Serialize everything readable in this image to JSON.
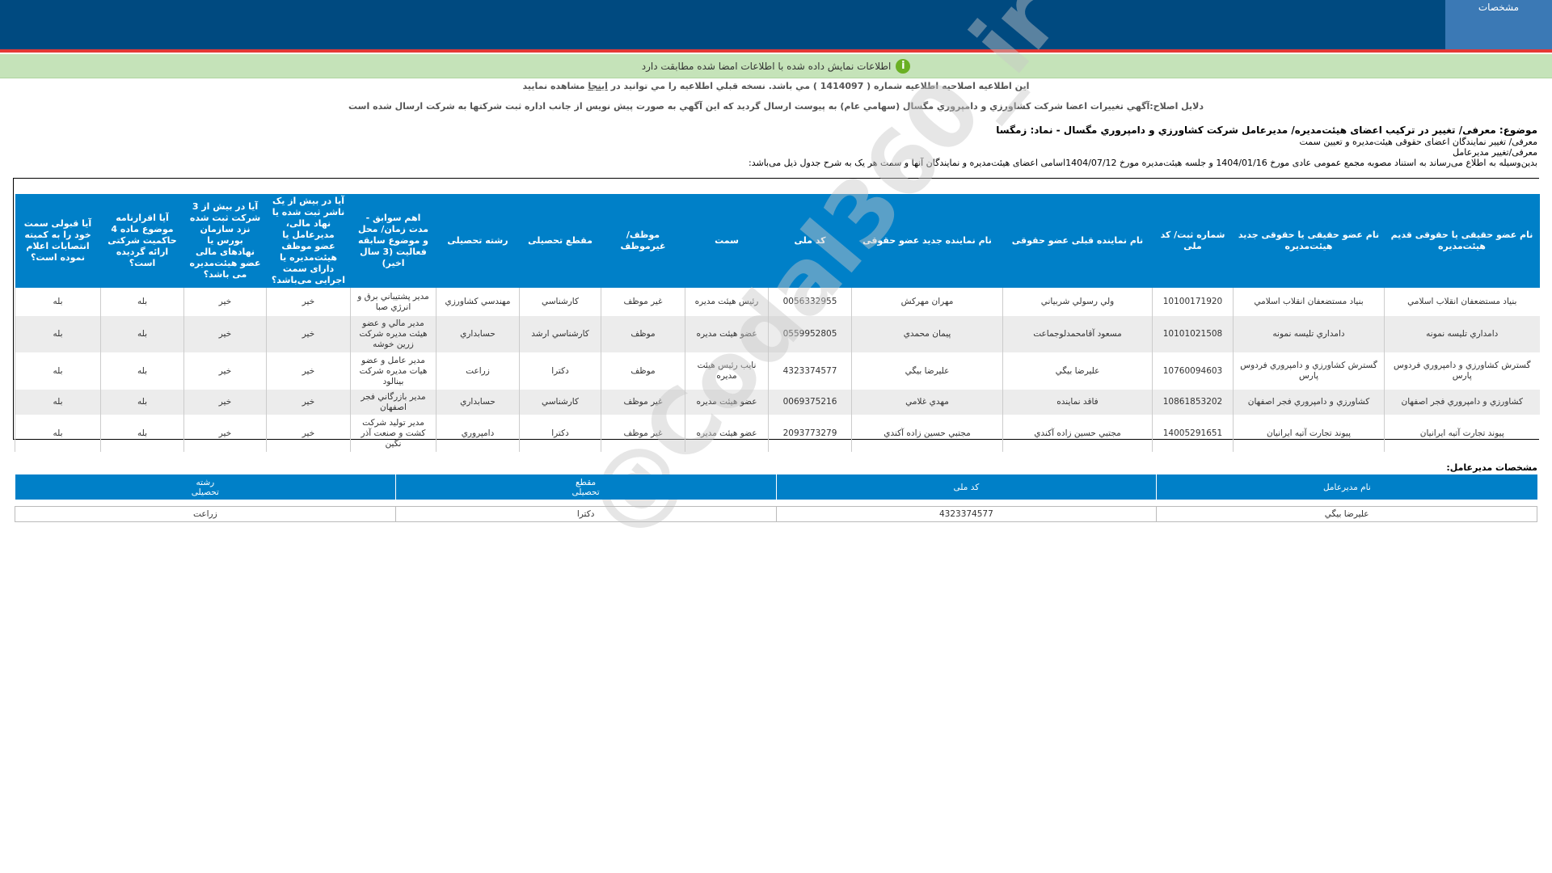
{
  "header": {
    "tab_label": "مشخصات"
  },
  "notice": {
    "text": "اطلاعات نمایش داده شده با اطلاعات امضا شده مطابقت دارد",
    "icon": "info-icon"
  },
  "correction": {
    "before": "اين اطلاعيه اصلاحيه اطلاعيه شماره ( 1414097 ) مي باشد. نسخه قبلي اطلاعيه را مي توانيد در ",
    "link": "اينجا",
    "after": " مشاهده نماييد"
  },
  "reasons": "دلایل اصلاح:آگهي تغييرات اعضا شرکت کشاورزي و دامپروري مگسال (سهامي عام) به پيوست ارسال گرديد که اين آگهي به صورت پيش نويس از جانب اداره ثبت شرکتها به شرکت ارسال شده است",
  "subject": {
    "title": "موضوع: معرفی/ تغییر در ترکیب اعضای هیئت‌مدیره/ مدیرعامل شرکت کشاورزي و دامپروري مگسال - نماد: زمگسا",
    "line1": "معرفی/ تغییر نمایندگان اعضای حقوقی هیئت‌مدیره و تعیین سمت",
    "line2": "معرفی/تغییر مدیرعامل",
    "line3": "بدین‌وسیله به اطلاع می‌رساند به استناد مصوبه مجمع عمومی عادی مورخ  1404/01/16  و جلسه هیئت‌مدیره مورخ  1404/07/12اسامی اعضای هیئت‌مدیره و نمایندگان آنها و سمت هر یک به شرح جدول ذیل می‌باشد:"
  },
  "board_table": {
    "headers": [
      "نام عضو حقیقی یا حقوقی قدیم هیئت‌مدیره",
      "نام عضو حقیقی یا حقوقی جدید هیئت‌مدیره",
      "شماره ثبت/ کد ملی",
      "نام نماینده قبلی عضو حقوقی",
      "نام نماینده جدید عضو حقوقی",
      "کد ملی",
      "سمت",
      "موظف/ غیرموظف",
      "مقطع تحصیلی",
      "رشته تحصیلی",
      "اهم سوابق - مدت زمان/ محل و موضوع سابقه فعالیت (3 سال اخیر)",
      "آیا در بیش از یک ناشر ثبت شده یا نهاد مالی، مدیرعامل یا عضو موظف هیئت‌مدیره یا دارای سمت اجرایی می‌باشد؟",
      "آیا در بیش از 3 شرکت ثبت شده نزد سازمان بورس یا نهادهای مالی عضو هیئت‌مدیره می باشد؟",
      "آیا اقرارنامه موضوع ماده 4 حاکمیت شرکتی ارائه گردیده است؟",
      "آیا قبولی سمت خود را به کمیته انتصابات اعلام نموده است؟"
    ],
    "rows": [
      [
        "بنياد مستضعفان انقلاب اسلامي",
        "بنياد مستضعفان انقلاب اسلامي",
        "10100171920",
        "ولي رسولي شربياني",
        "مهران مهركش",
        "0056332955",
        "رئيس هيئت مديره",
        "غير موظف",
        "كارشناسي",
        "مهندسي كشاورزي",
        "مدير پشتيباني برق و انرژي صبا",
        "خیر",
        "خیر",
        "بله",
        "بله"
      ],
      [
        "دامداري تليسه نمونه",
        "دامداري تليسه نمونه",
        "10101021508",
        "مسعود آقامحمدلوجماعت",
        "پيمان محمدي",
        "0559952805",
        "عضو هيئت مديره",
        "موظف",
        "كارشناسي ارشد",
        "حسابداري",
        "مدير مالي و عضو هيئت مديره شركت زرين خوشه",
        "خیر",
        "خیر",
        "بله",
        "بله"
      ],
      [
        "گسترش كشاورزي و دامپروري فردوس پارس",
        "گسترش كشاورزي و دامپروري فردوس پارس",
        "10760094603",
        "عليرضا بيگي",
        "عليرضا بيگي",
        "4323374577",
        "نايب رئيس هيئت مديره",
        "موظف",
        "دكترا",
        "زراعت",
        "مدير عامل و عضو هيات مديره شركت بينالود",
        "خیر",
        "خیر",
        "بله",
        "بله"
      ],
      [
        "كشاورزي و دامپروري فجر اصفهان",
        "كشاورزي و دامپروري فجر اصفهان",
        "10861853202",
        "فاقد نماينده",
        "مهدي غلامي",
        "0069375216",
        "عضو هيئت مديره",
        "غير موظف",
        "كارشناسي",
        "حسابداري",
        "مدير بازرگاني فجر اصفهان",
        "خیر",
        "خیر",
        "بله",
        "بله"
      ],
      [
        "پيوند تجارت آتيه ايرانيان",
        "پيوند تجارت آتيه ايرانيان",
        "14005291651",
        "مجتبي حسين زاده آكندي",
        "مجتبي حسين زاده آكندي",
        "2093773279",
        "عضو هيئت مديره",
        "غير موظف",
        "دكترا",
        "دامپروري",
        "مدير توليد شركت كشت و صنعت آذر نگين",
        "خیر",
        "خیر",
        "بله",
        "بله"
      ]
    ]
  },
  "ceo": {
    "label": "مشخصات مدیرعامل:",
    "headers": [
      "نام مدیرعامل",
      "کد ملی",
      "مقطع\nتحصیلی",
      "رشته\nتحصیلی"
    ],
    "row": [
      "عليرضا بيگي",
      "4323374577",
      "دكترا",
      "زراعت"
    ]
  },
  "watermark": "@Codal360_ir",
  "colors": {
    "header": "#004a80",
    "accent_red": "#e53935",
    "table_header": "#0080c8",
    "notice_bg": "#c5e3b9"
  }
}
